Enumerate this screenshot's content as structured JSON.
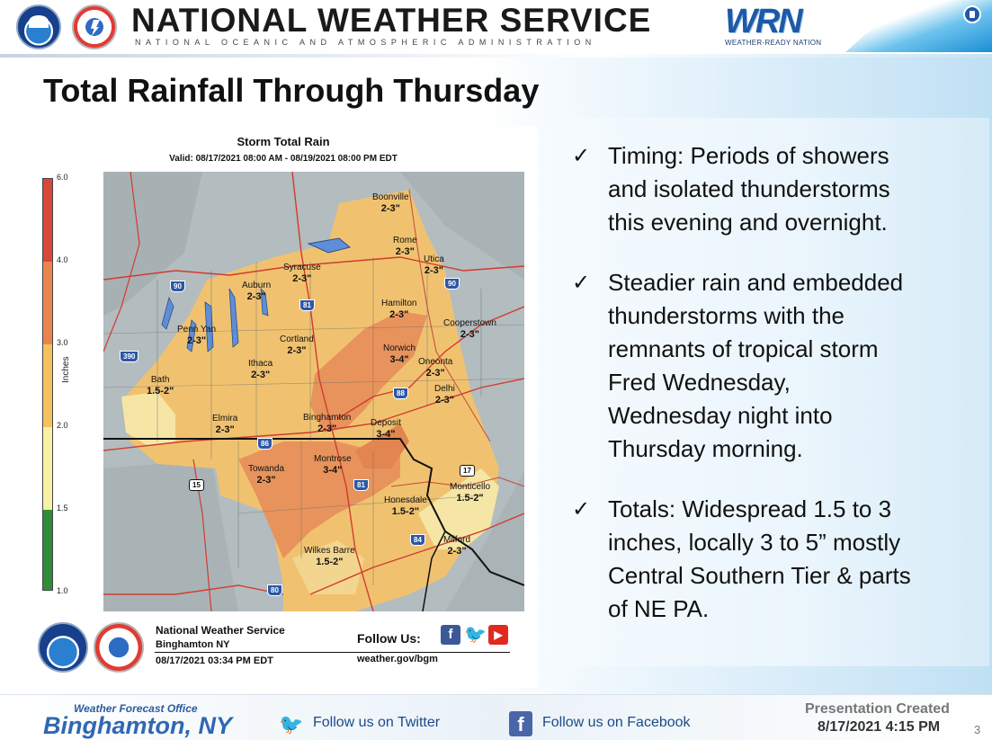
{
  "header": {
    "org_title": "NATIONAL WEATHER SERVICE",
    "org_subtitle": "NATIONAL OCEANIC AND ATMOSPHERIC ADMINISTRATION",
    "wrn_mark": "WRN",
    "wrn_text": "WEATHER-READY NATION"
  },
  "slide": {
    "title": "Total Rainfall Through Thursday",
    "page_number": "3"
  },
  "map": {
    "title": "Storm Total Rain",
    "valid": "Valid: 08/17/2021 08:00 AM - 08/19/2021 08:00 PM EDT",
    "legend": {
      "units": "Inches",
      "ticks": [
        "6.0",
        "4.0",
        "3.0",
        "2.0",
        "1.5",
        "1.0"
      ],
      "colors": [
        "#d9473a",
        "#e9844c",
        "#f4c15f",
        "#f7f2a3",
        "#2f8c3a"
      ]
    },
    "towns": [
      {
        "name": "Boonville",
        "value": "2-3\""
      },
      {
        "name": "Rome",
        "value": "2-3\""
      },
      {
        "name": "Utica",
        "value": "2-3\""
      },
      {
        "name": "Syracuse",
        "value": "2-3\""
      },
      {
        "name": "Auburn",
        "value": "2-3\""
      },
      {
        "name": "Hamilton",
        "value": "2-3\""
      },
      {
        "name": "Cooperstown",
        "value": "2-3\""
      },
      {
        "name": "Penn Yan",
        "value": "2-3\""
      },
      {
        "name": "Cortland",
        "value": "2-3\""
      },
      {
        "name": "Norwich",
        "value": "3-4\""
      },
      {
        "name": "Oneonta",
        "value": "2-3\""
      },
      {
        "name": "Ithaca",
        "value": "2-3\""
      },
      {
        "name": "Bath",
        "value": "1.5-2\""
      },
      {
        "name": "Delhi",
        "value": "2-3\""
      },
      {
        "name": "Elmira",
        "value": "2-3\""
      },
      {
        "name": "Binghamton",
        "value": "2-3\""
      },
      {
        "name": "Deposit",
        "value": "3-4\""
      },
      {
        "name": "Montrose",
        "value": "3-4\""
      },
      {
        "name": "Towanda",
        "value": "2-3\""
      },
      {
        "name": "Monticello",
        "value": "1.5-2\""
      },
      {
        "name": "Honesdale",
        "value": "1.5-2\""
      },
      {
        "name": "Milford",
        "value": "2-3\""
      },
      {
        "name": "Wilkes Barre",
        "value": "1.5-2\""
      }
    ],
    "highways": [
      "90",
      "81",
      "90",
      "390",
      "88",
      "86",
      "81",
      "15",
      "17",
      "84",
      "80"
    ],
    "footer": {
      "office": "National Weather Service",
      "location": "Binghamton NY",
      "timestamp": "08/17/2021 03:34 PM EDT",
      "follow_label": "Follow Us:",
      "website": "weather.gov/bgm"
    }
  },
  "bullets": [
    {
      "text": "Timing:  Periods of showers\nand isolated thunderstorms\nthis evening and overnight."
    },
    {
      "text": "Steadier rain and embedded\nthunderstorms with the\nremnants of tropical storm\nFred Wednesday,\nWednesday night into\nThursday morning."
    },
    {
      "text": "Totals:  Widespread  1.5 to 3\ninches, locally 3 to 5” mostly\nCentral Southern Tier & parts\nof NE PA."
    }
  ],
  "footer": {
    "office_small": "Weather Forecast Office",
    "office_big": "Binghamton, NY",
    "twitter_text": "Follow us on Twitter",
    "facebook_text": "Follow us on Facebook",
    "presentation_label": "Presentation Created",
    "presentation_date": "8/17/2021 4:15 PM"
  },
  "colors": {
    "brand_blue": "#2f67b3",
    "rain_orange": "#e9844c",
    "rain_yellow": "#f4c15f",
    "background_gray": "#b3bcbf"
  }
}
